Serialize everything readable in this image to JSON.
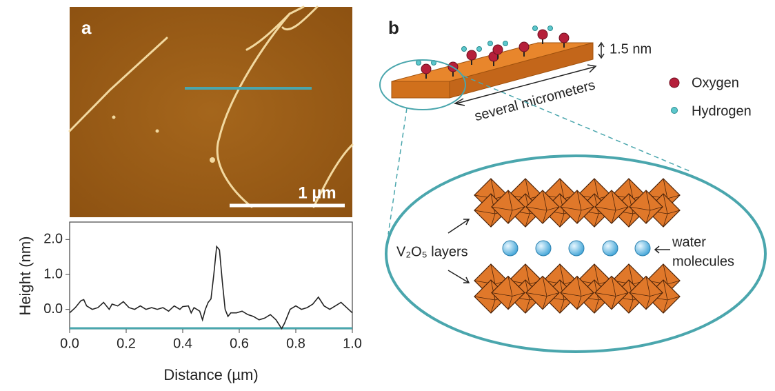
{
  "panel_a": {
    "label": "a",
    "scale_bar": "1 µm"
  },
  "chart_data": {
    "type": "line",
    "x_label": "Distance (µm)",
    "y_label": "Height (nm)",
    "x": [
      0,
      0.02,
      0.04,
      0.05,
      0.06,
      0.08,
      0.1,
      0.12,
      0.14,
      0.15,
      0.17,
      0.19,
      0.21,
      0.23,
      0.25,
      0.27,
      0.29,
      0.31,
      0.33,
      0.35,
      0.37,
      0.39,
      0.4,
      0.42,
      0.43,
      0.44,
      0.46,
      0.47,
      0.48,
      0.49,
      0.5,
      0.51,
      0.52,
      0.53,
      0.54,
      0.55,
      0.56,
      0.57,
      0.59,
      0.61,
      0.63,
      0.65,
      0.67,
      0.69,
      0.71,
      0.73,
      0.75,
      0.76,
      0.77,
      0.78,
      0.8,
      0.82,
      0.84,
      0.86,
      0.88,
      0.9,
      0.92,
      0.94,
      0.96,
      0.98,
      1
    ],
    "values": [
      -0.1,
      0.05,
      0.25,
      0.28,
      0.1,
      0,
      0.05,
      0.2,
      0,
      0.15,
      0.1,
      0.22,
      0.05,
      0,
      0.1,
      0,
      0.05,
      0,
      0.05,
      -0.05,
      0.1,
      0,
      0.08,
      0.1,
      -0.1,
      0.05,
      -0.05,
      -0.3,
      0,
      0.2,
      0.3,
      1,
      1.8,
      1.7,
      0.8,
      0,
      -0.2,
      -0.1,
      -0.1,
      -0.05,
      -0.15,
      -0.2,
      -0.3,
      -0.25,
      -0.15,
      -0.3,
      -0.55,
      -0.4,
      -0.2,
      0,
      0.1,
      0,
      0.05,
      0.15,
      0.35,
      0.1,
      0,
      0.1,
      0.2,
      0.05,
      -0.1
    ],
    "color": "#222222",
    "axis_color": "#4aa6ad",
    "xlim": [
      0,
      1
    ],
    "ylim": [
      -0.56,
      2.5
    ],
    "xticks": [
      {
        "value": 0,
        "label": "0.0"
      },
      {
        "value": 0.2,
        "label": "0.2"
      },
      {
        "value": 0.4,
        "label": "0.4"
      },
      {
        "value": 0.6,
        "label": "0.6"
      },
      {
        "value": 0.8,
        "label": "0.8"
      },
      {
        "value": 1,
        "label": "1.0"
      }
    ],
    "yticks": [
      {
        "value": 0,
        "label": "0.0"
      },
      {
        "value": 1,
        "label": "1.0"
      },
      {
        "value": 2,
        "label": "2.0"
      }
    ]
  },
  "panel_b": {
    "label": "b",
    "thickness": "1.5 nm",
    "length": "several micrometers",
    "legend": [
      "Oxygen",
      "Hydrogen"
    ],
    "layers": "V₂O₅ layers",
    "water": [
      "water",
      "molecules"
    ]
  }
}
